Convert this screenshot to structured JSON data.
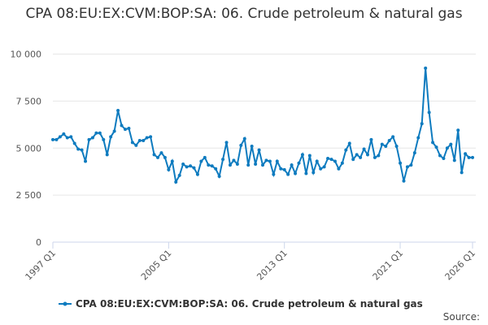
{
  "chart_data": {
    "type": "line",
    "title": "CPA 08:EU:EX:CVM:BOP:SA: 06. Crude petroleum & natural gas",
    "categories": [
      "1997 Q1",
      null,
      null,
      null,
      null,
      null,
      null,
      null,
      null,
      null,
      null,
      null,
      null,
      null,
      null,
      null,
      null,
      null,
      null,
      null,
      null,
      null,
      null,
      null,
      null,
      null,
      null,
      null,
      null,
      null,
      null,
      null,
      "2005 Q1",
      null,
      null,
      null,
      null,
      null,
      null,
      null,
      null,
      null,
      null,
      null,
      null,
      null,
      null,
      null,
      null,
      null,
      null,
      null,
      null,
      null,
      null,
      null,
      null,
      null,
      null,
      null,
      null,
      null,
      null,
      null,
      "2013 Q1",
      null,
      null,
      null,
      null,
      null,
      null,
      null,
      null,
      null,
      null,
      null,
      null,
      null,
      null,
      null,
      null,
      null,
      null,
      null,
      null,
      null,
      null,
      null,
      null,
      null,
      null,
      null,
      null,
      null,
      null,
      null,
      "2021 Q1",
      null,
      null,
      null,
      null,
      null,
      null,
      null,
      null,
      null,
      null,
      null,
      null,
      null,
      null,
      null,
      null,
      null,
      null,
      null,
      "2026 Q1"
    ],
    "series": [
      {
        "name": "CPA 08:EU:EX:CVM:BOP:SA: 06. Crude petroleum & natural gas",
        "color": "#0e7bbf",
        "values": [
          5450,
          5450,
          5600,
          5750,
          5550,
          5600,
          5250,
          4950,
          4900,
          4300,
          5450,
          5550,
          5800,
          5800,
          5450,
          4650,
          5600,
          5900,
          7000,
          6200,
          6000,
          6050,
          5300,
          5150,
          5400,
          5400,
          5550,
          5600,
          4650,
          4500,
          4750,
          4500,
          3850,
          4300,
          3200,
          3550,
          4150,
          4000,
          4050,
          3950,
          3600,
          4300,
          4500,
          4100,
          4050,
          3900,
          3500,
          4400,
          5300,
          4100,
          4350,
          4150,
          5150,
          5500,
          4100,
          5100,
          4150,
          4900,
          4100,
          4350,
          4300,
          3600,
          4300,
          3900,
          3850,
          3600,
          4100,
          3650,
          4200,
          4650,
          3650,
          4600,
          3700,
          4300,
          3900,
          4000,
          4450,
          4400,
          4300,
          3900,
          4200,
          4900,
          5250,
          4400,
          4650,
          4500,
          4950,
          4650,
          5450,
          4500,
          4600,
          5200,
          5100,
          5400,
          5600,
          5100,
          4200,
          3250,
          4000,
          4100,
          4750,
          5550,
          6300,
          9250,
          6900,
          5300,
          5050,
          4600,
          4450,
          5000,
          5200,
          4350,
          5950,
          3700,
          4700,
          4500,
          4500
        ]
      }
    ],
    "ylim": [
      0,
      10500
    ],
    "yticks": [
      0,
      {
        "value": 2500,
        "label": "2 500"
      },
      {
        "value": 5000,
        "label": "5 000"
      },
      {
        "value": 7500,
        "label": "7 500"
      },
      {
        "value": 10000,
        "label": "10 000"
      }
    ],
    "grid": true,
    "source": "Source:"
  }
}
